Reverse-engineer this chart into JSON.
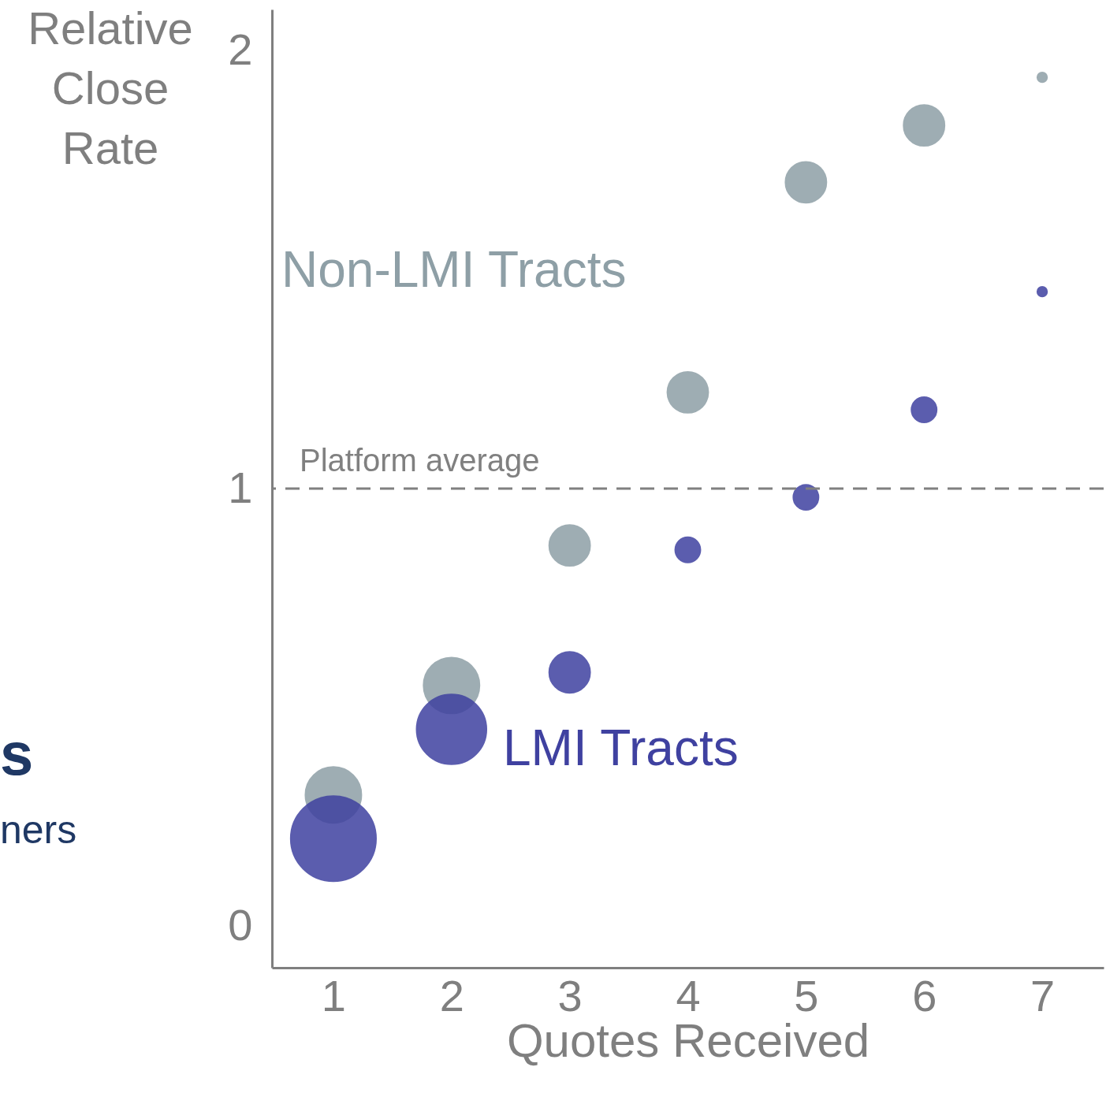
{
  "chart_data": {
    "type": "bubble",
    "xlabel": "Quotes Received",
    "ylabel": "Relative Close Rate",
    "x": [
      1,
      2,
      3,
      4,
      5,
      6,
      7
    ],
    "xlim": [
      0.48,
      7.52
    ],
    "xticks": [
      1,
      2,
      3,
      4,
      5,
      6,
      7
    ],
    "ylim": [
      -0.095,
      2.095
    ],
    "yticks": [
      0,
      1,
      2
    ],
    "series": [
      {
        "name": "Non-LMI Tracts",
        "color": "#8e9fa6",
        "values": [
          0.3,
          0.55,
          0.87,
          1.22,
          1.7,
          1.83,
          1.94
        ],
        "sizes": [
          0.43,
          0.43,
          0.23,
          0.23,
          0.23,
          0.23,
          0.013
        ]
      },
      {
        "name": "LMI Tracts",
        "color": "#3f41a0",
        "values": [
          0.2,
          0.45,
          0.58,
          0.86,
          0.98,
          1.18,
          1.45
        ],
        "sizes": [
          1,
          0.67,
          0.23,
          0.087,
          0.087,
          0.087,
          0.013
        ]
      }
    ],
    "ref_lines": [
      {
        "axis": "y",
        "value": 1,
        "label": "Platform average",
        "color": "#808080",
        "line_style": "dashed"
      }
    ],
    "annotations": [
      "s",
      "ners"
    ],
    "grid": false
  }
}
